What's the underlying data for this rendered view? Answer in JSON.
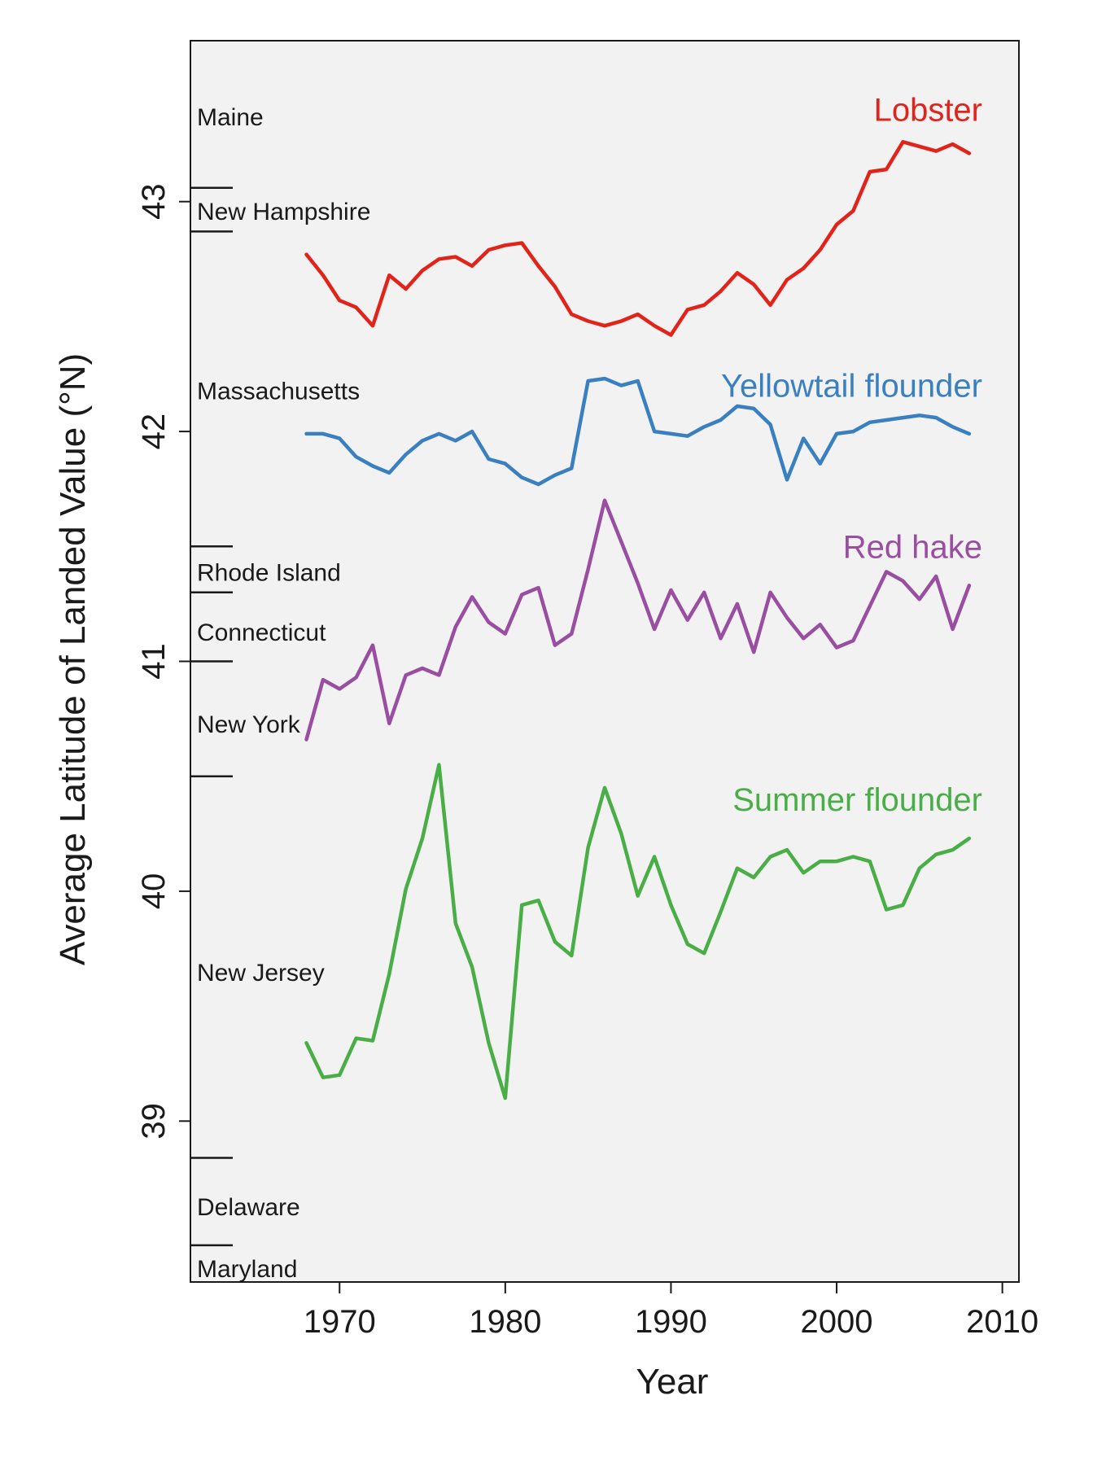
{
  "chart_data": {
    "type": "line",
    "xlabel": "Year",
    "ylabel": "Average Latitude of Landed Value (°N)",
    "xlim": [
      1961,
      2011
    ],
    "ylim": [
      38.3,
      43.7
    ],
    "x_ticks": [
      "1970",
      "1980",
      "1990",
      "2000",
      "2010"
    ],
    "y_ticks": [
      "39",
      "40",
      "41",
      "42",
      "43"
    ],
    "grid": false,
    "background": "#f2f2f2",
    "states": [
      {
        "name": "Maine",
        "label_lat": 43.37
      },
      {
        "name": "New Hampshire",
        "label_lat": 42.96
      },
      {
        "name": "Massachusetts",
        "label_lat": 42.18
      },
      {
        "name": "Rhode Island",
        "label_lat": 41.39
      },
      {
        "name": "Connecticut",
        "label_lat": 41.13
      },
      {
        "name": "New York",
        "label_lat": 40.73
      },
      {
        "name": "New Jersey",
        "label_lat": 39.65
      },
      {
        "name": "Delaware",
        "label_lat": 38.63
      },
      {
        "name": "Maryland",
        "label_lat": 38.36
      }
    ],
    "state_boundaries": [
      43.06,
      42.87,
      41.5,
      41.3,
      41.0,
      40.5,
      38.84,
      38.46
    ],
    "x": [
      1968,
      1969,
      1970,
      1971,
      1972,
      1973,
      1974,
      1975,
      1976,
      1977,
      1978,
      1979,
      1980,
      1981,
      1982,
      1983,
      1984,
      1985,
      1986,
      1987,
      1988,
      1989,
      1990,
      1991,
      1992,
      1993,
      1994,
      1995,
      1996,
      1997,
      1998,
      1999,
      2000,
      2001,
      2002,
      2003,
      2004,
      2005,
      2006,
      2007,
      2008
    ],
    "series": [
      {
        "name": "Lobster",
        "color": "#e2231a",
        "label_lat": 43.4,
        "values": [
          42.77,
          42.68,
          42.57,
          42.54,
          42.46,
          42.68,
          42.62,
          42.7,
          42.75,
          42.76,
          42.72,
          42.79,
          42.81,
          42.82,
          42.72,
          42.63,
          42.51,
          42.48,
          42.46,
          42.48,
          42.51,
          42.46,
          42.42,
          42.53,
          42.55,
          42.61,
          42.69,
          42.64,
          42.55,
          42.66,
          42.71,
          42.79,
          42.9,
          42.96,
          43.13,
          43.14,
          43.26,
          43.24,
          43.22,
          43.25,
          43.21
        ]
      },
      {
        "name": "Yellowtail flounder",
        "color": "#3a80c1",
        "label_lat": 42.2,
        "values": [
          41.99,
          41.99,
          41.97,
          41.89,
          41.85,
          41.82,
          41.9,
          41.96,
          41.99,
          41.96,
          42.0,
          41.88,
          41.86,
          41.8,
          41.77,
          41.81,
          41.84,
          42.22,
          42.23,
          42.2,
          42.22,
          42.0,
          41.99,
          41.98,
          42.02,
          42.05,
          42.11,
          42.1,
          42.03,
          41.79,
          41.97,
          41.86,
          41.99,
          42.0,
          42.04,
          42.05,
          42.06,
          42.07,
          42.06,
          42.02,
          41.99
        ]
      },
      {
        "name": "Red hake",
        "color": "#9a4ea2",
        "label_lat": 41.5,
        "values": [
          40.66,
          40.92,
          40.88,
          40.93,
          41.07,
          40.73,
          40.94,
          40.97,
          40.94,
          41.15,
          41.28,
          41.17,
          41.12,
          41.29,
          41.32,
          41.07,
          41.12,
          41.4,
          41.7,
          41.52,
          41.34,
          41.14,
          41.31,
          41.18,
          41.3,
          41.1,
          41.25,
          41.04,
          41.3,
          41.19,
          41.1,
          41.16,
          41.06,
          41.09,
          41.24,
          41.39,
          41.35,
          41.27,
          41.37,
          41.14,
          41.33
        ]
      },
      {
        "name": "Summer flounder",
        "color": "#4aae47",
        "label_lat": 40.4,
        "values": [
          39.34,
          39.19,
          39.2,
          39.36,
          39.35,
          39.64,
          40.01,
          40.23,
          40.55,
          39.86,
          39.67,
          39.34,
          39.1,
          39.94,
          39.96,
          39.78,
          39.72,
          40.19,
          40.45,
          40.25,
          39.98,
          40.15,
          39.94,
          39.77,
          39.73,
          39.91,
          40.1,
          40.06,
          40.15,
          40.18,
          40.08,
          40.13,
          40.13,
          40.15,
          40.13,
          39.92,
          39.94,
          40.1,
          40.16,
          40.18,
          40.23
        ]
      }
    ]
  }
}
